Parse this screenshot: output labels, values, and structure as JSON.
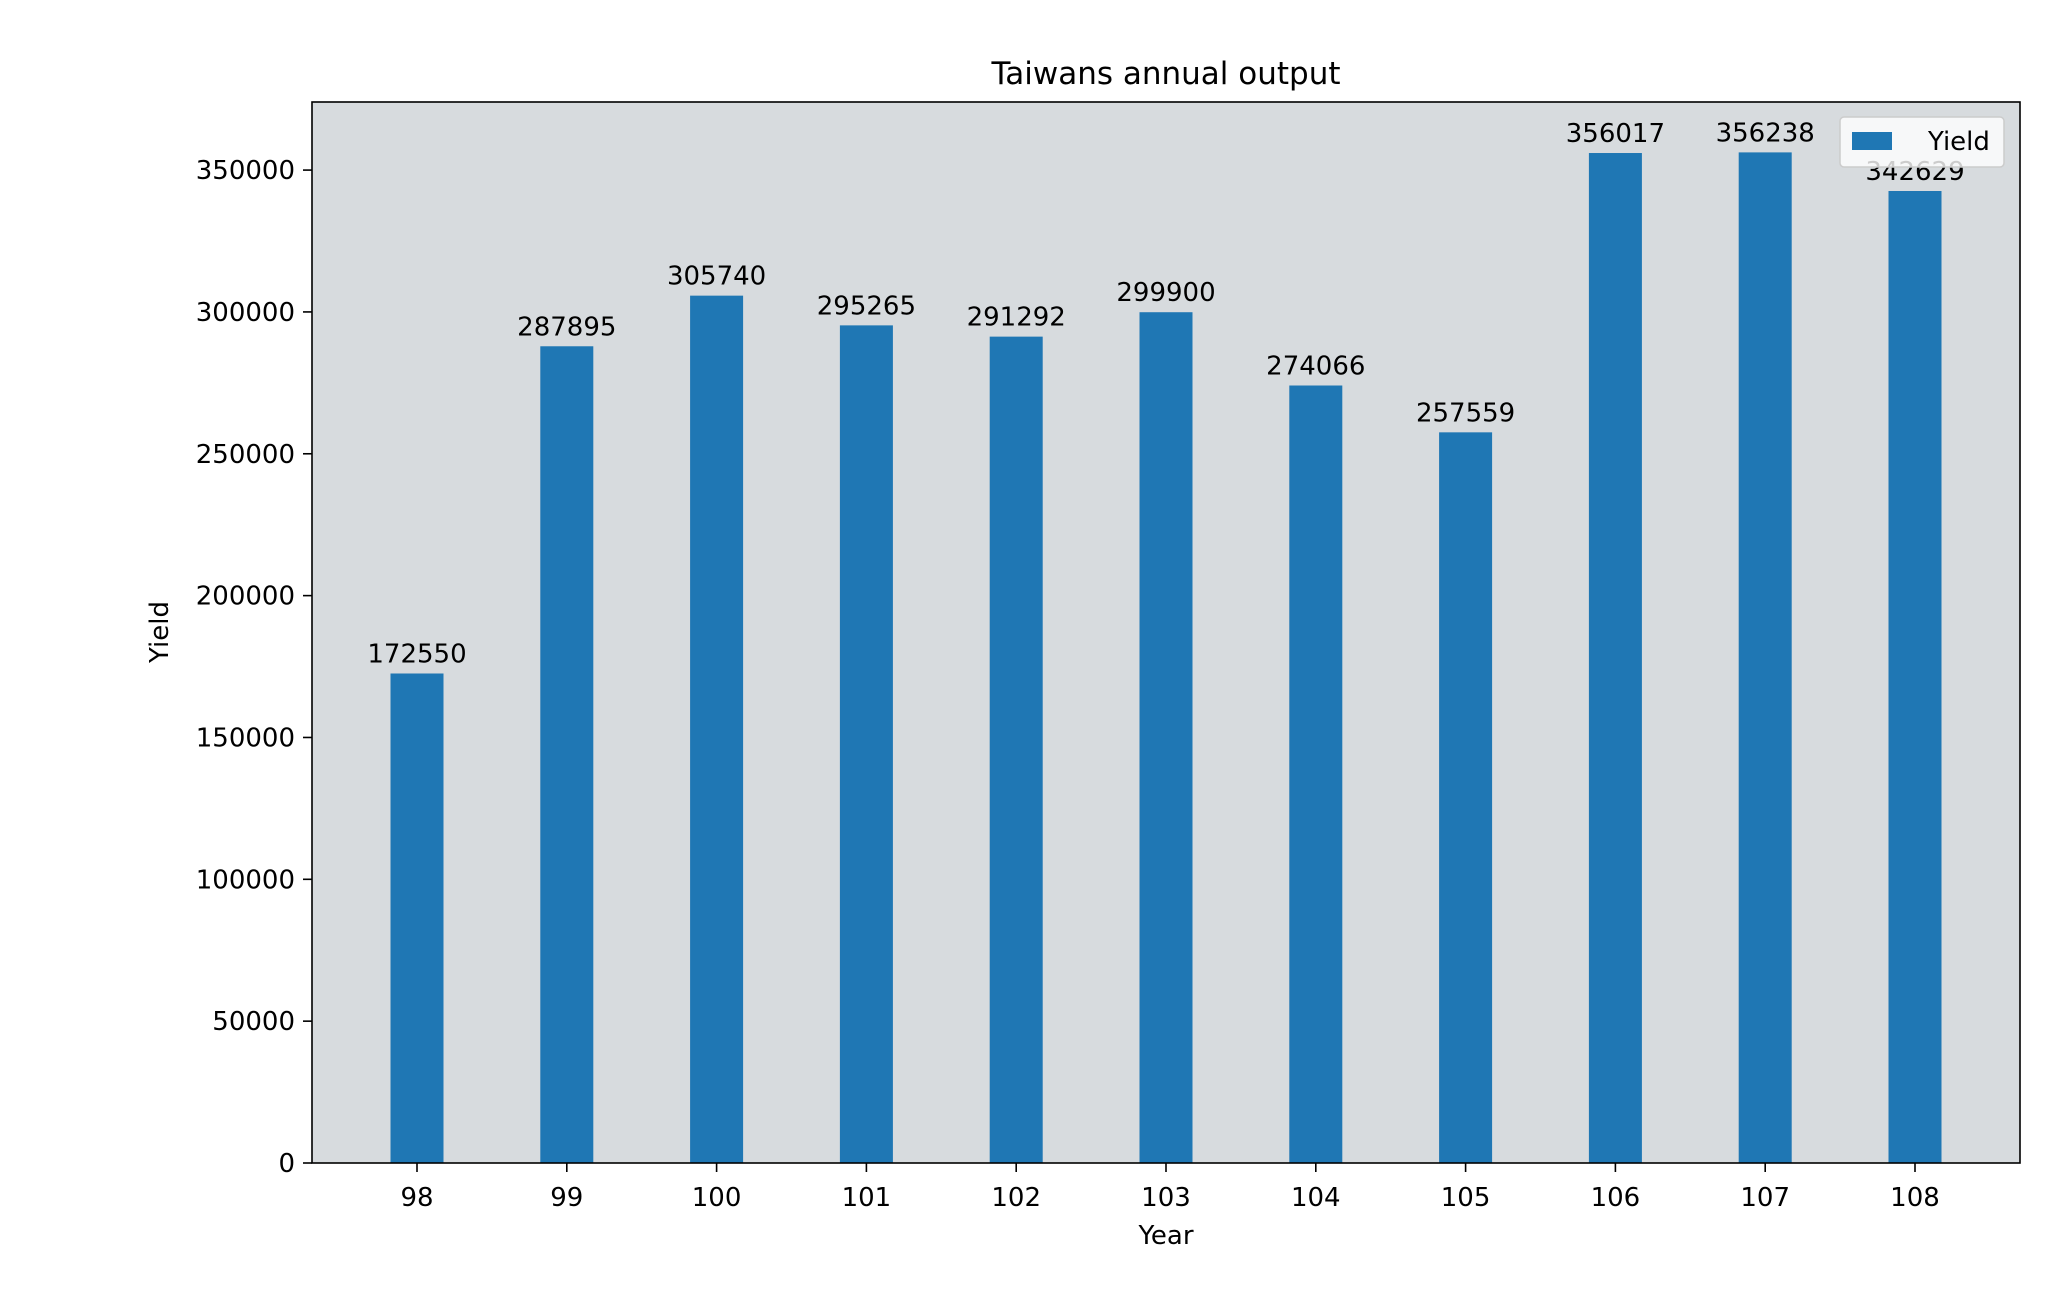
{
  "chart_data": {
    "type": "bar",
    "title": "Taiwans annual output",
    "xlabel": "Year",
    "ylabel": "Yield",
    "categories": [
      "98",
      "99",
      "100",
      "101",
      "102",
      "103",
      "104",
      "105",
      "106",
      "107",
      "108"
    ],
    "series": [
      {
        "name": "Yield",
        "values": [
          172550,
          287895,
          305740,
          295265,
          291292,
          299900,
          274066,
          257559,
          356017,
          356238,
          342629
        ]
      }
    ],
    "ylim": [
      0,
      374000
    ],
    "yticks": [
      0,
      50000,
      100000,
      150000,
      200000,
      250000,
      300000,
      350000
    ],
    "grid": false,
    "legend_position": "top-right",
    "colors": {
      "bar": "#1f77b4",
      "plot_background": "#d7dbde"
    }
  }
}
